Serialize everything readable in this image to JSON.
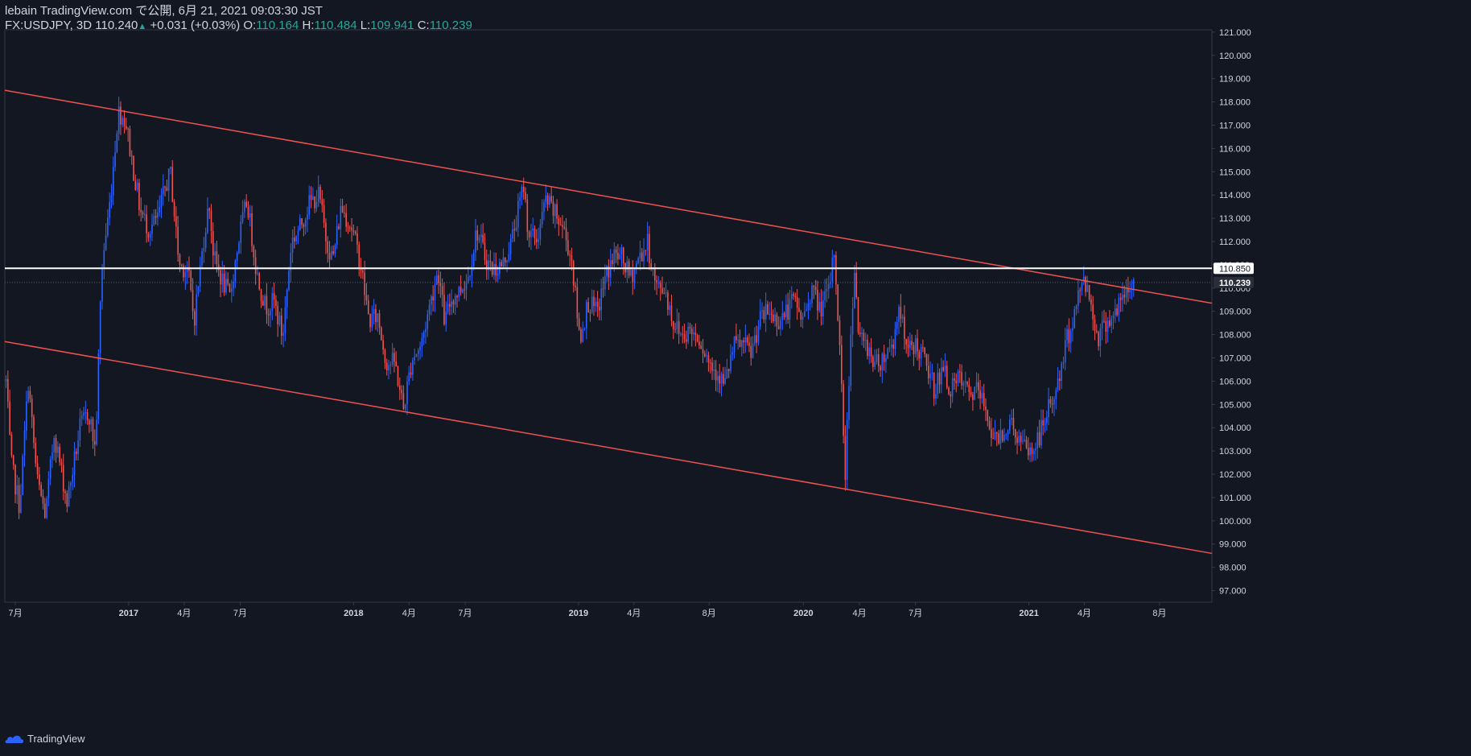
{
  "header": {
    "publish_line": "lebain TradingView.com で公開, 6月 21, 2021 09:03:30 JST",
    "symbol": "FX:USDJPY, 3D",
    "last": "110.240",
    "change": "+0.031 (+0.03%)",
    "o_label": "O:",
    "o_value": "110.164",
    "h_label": "H:",
    "h_value": "110.484",
    "l_label": "L:",
    "l_value": "109.941",
    "c_label": "C:",
    "c_value": "110.239"
  },
  "footer": {
    "brand": "TradingView"
  },
  "colors": {
    "background": "#131722",
    "up": "#2962ff",
    "down": "#ef5350",
    "trendline": "#f0524f",
    "level": "#ffffff",
    "axis_text": "#d1d4dc",
    "grid": "#363a45"
  },
  "chart_data": {
    "type": "candlestick",
    "symbol": "FX:USDJPY",
    "interval": "3D",
    "ylim": [
      96.5,
      121.1
    ],
    "y_ticks": [
      "97.000",
      "98.000",
      "99.000",
      "100.000",
      "101.000",
      "102.000",
      "103.000",
      "104.000",
      "105.000",
      "106.000",
      "107.000",
      "108.000",
      "109.000",
      "110.000",
      "111.000",
      "112.000",
      "113.000",
      "114.000",
      "115.000",
      "116.000",
      "117.000",
      "118.000",
      "119.000",
      "120.000",
      "121.000"
    ],
    "x_ticks": [
      "7月",
      "2017",
      "4月",
      "7月",
      "2018",
      "4月",
      "7月",
      "2019",
      "4月",
      "8月",
      "2020",
      "4月",
      "7月",
      "2021",
      "4月",
      "8月"
    ],
    "x_tick_dates": [
      "2016-07-01",
      "2017-01-01",
      "2017-04-01",
      "2017-07-01",
      "2018-01-01",
      "2018-04-01",
      "2018-07-01",
      "2019-01-01",
      "2019-04-01",
      "2019-08-01",
      "2020-01-01",
      "2020-04-01",
      "2020-07-01",
      "2021-01-01",
      "2021-04-01",
      "2021-08-01"
    ],
    "x_range_dates": [
      "2016-06-14",
      "2021-10-25"
    ],
    "price_labels": [
      {
        "text": "110.850",
        "value": 110.85,
        "style": "white"
      },
      {
        "text": "110.239",
        "value": 110.239,
        "style": "dark"
      }
    ],
    "horizontal_line": {
      "value": 110.85
    },
    "trendlines": [
      {
        "name": "upper",
        "points": [
          {
            "date": "2016-06-14",
            "price": 118.5
          },
          {
            "date": "2021-10-25",
            "price": 109.35
          }
        ]
      },
      {
        "name": "lower",
        "points": [
          {
            "date": "2016-06-14",
            "price": 107.7
          },
          {
            "date": "2021-10-25",
            "price": 98.6
          }
        ]
      }
    ],
    "close_path": [
      [
        "2016-06-16",
        106.0
      ],
      [
        "2016-06-24",
        102.5
      ],
      [
        "2016-07-08",
        100.6
      ],
      [
        "2016-07-22",
        106.0
      ],
      [
        "2016-08-05",
        101.8
      ],
      [
        "2016-08-19",
        100.2
      ],
      [
        "2016-09-02",
        103.8
      ],
      [
        "2016-09-23",
        100.8
      ],
      [
        "2016-10-14",
        104.0
      ],
      [
        "2016-10-28",
        104.7
      ],
      [
        "2016-11-08",
        103.0
      ],
      [
        "2016-11-18",
        110.8
      ],
      [
        "2016-12-02",
        113.8
      ],
      [
        "2016-12-15",
        117.6
      ],
      [
        "2016-12-27",
        117.2
      ],
      [
        "2017-01-06",
        115.5
      ],
      [
        "2017-01-20",
        113.3
      ],
      [
        "2017-02-03",
        112.5
      ],
      [
        "2017-02-17",
        113.0
      ],
      [
        "2017-03-03",
        114.5
      ],
      [
        "2017-03-10",
        114.9
      ],
      [
        "2017-03-24",
        111.0
      ],
      [
        "2017-04-07",
        110.8
      ],
      [
        "2017-04-17",
        108.6
      ],
      [
        "2017-05-05",
        112.6
      ],
      [
        "2017-05-12",
        113.6
      ],
      [
        "2017-05-19",
        111.3
      ],
      [
        "2017-06-02",
        110.3
      ],
      [
        "2017-06-14",
        109.6
      ],
      [
        "2017-06-30",
        112.3
      ],
      [
        "2017-07-12",
        113.8
      ],
      [
        "2017-07-28",
        110.6
      ],
      [
        "2017-08-11",
        109.2
      ],
      [
        "2017-08-25",
        109.4
      ],
      [
        "2017-09-08",
        107.9
      ],
      [
        "2017-09-22",
        112.0
      ],
      [
        "2017-10-06",
        112.6
      ],
      [
        "2017-10-20",
        113.6
      ],
      [
        "2017-11-06",
        114.0
      ],
      [
        "2017-11-17",
        112.2
      ],
      [
        "2017-11-28",
        111.2
      ],
      [
        "2017-12-12",
        113.5
      ],
      [
        "2017-12-29",
        112.6
      ],
      [
        "2018-01-12",
        111.1
      ],
      [
        "2018-01-26",
        108.6
      ],
      [
        "2018-02-09",
        108.8
      ],
      [
        "2018-02-23",
        106.8
      ],
      [
        "2018-03-09",
        106.8
      ],
      [
        "2018-03-23",
        104.8
      ],
      [
        "2018-04-06",
        107.0
      ],
      [
        "2018-04-20",
        107.5
      ],
      [
        "2018-05-04",
        109.2
      ],
      [
        "2018-05-18",
        110.8
      ],
      [
        "2018-05-29",
        108.5
      ],
      [
        "2018-06-08",
        109.5
      ],
      [
        "2018-06-22",
        109.9
      ],
      [
        "2018-07-06",
        110.5
      ],
      [
        "2018-07-20",
        112.5
      ],
      [
        "2018-08-03",
        111.3
      ],
      [
        "2018-08-14",
        110.8
      ],
      [
        "2018-08-31",
        111.0
      ],
      [
        "2018-09-14",
        112.0
      ],
      [
        "2018-09-28",
        113.7
      ],
      [
        "2018-10-04",
        114.4
      ],
      [
        "2018-10-12",
        112.3
      ],
      [
        "2018-10-26",
        112.1
      ],
      [
        "2018-11-09",
        113.8
      ],
      [
        "2018-11-23",
        113.2
      ],
      [
        "2018-12-07",
        112.6
      ],
      [
        "2018-12-21",
        111.2
      ],
      [
        "2019-01-03",
        107.8
      ],
      [
        "2019-01-17",
        109.4
      ],
      [
        "2019-01-31",
        108.9
      ],
      [
        "2019-02-14",
        110.5
      ],
      [
        "2019-02-28",
        111.4
      ],
      [
        "2019-03-12",
        111.3
      ],
      [
        "2019-03-26",
        110.4
      ],
      [
        "2019-04-09",
        111.3
      ],
      [
        "2019-04-23",
        111.9
      ],
      [
        "2019-05-07",
        110.0
      ],
      [
        "2019-05-21",
        110.0
      ],
      [
        "2019-06-04",
        108.5
      ],
      [
        "2019-06-18",
        108.0
      ],
      [
        "2019-07-02",
        108.2
      ],
      [
        "2019-07-16",
        107.9
      ],
      [
        "2019-08-01",
        106.8
      ],
      [
        "2019-08-15",
        106.4
      ],
      [
        "2019-08-26",
        105.8
      ],
      [
        "2019-09-10",
        107.5
      ],
      [
        "2019-09-24",
        107.6
      ],
      [
        "2019-10-08",
        107.2
      ],
      [
        "2019-10-22",
        108.6
      ],
      [
        "2019-11-05",
        109.0
      ],
      [
        "2019-11-19",
        108.6
      ],
      [
        "2019-12-03",
        108.9
      ],
      [
        "2019-12-17",
        109.5
      ],
      [
        "2019-12-31",
        108.6
      ],
      [
        "2020-01-14",
        110.0
      ],
      [
        "2020-01-28",
        109.1
      ],
      [
        "2020-02-11",
        109.8
      ],
      [
        "2020-02-20",
        111.6
      ],
      [
        "2020-02-28",
        108.0
      ],
      [
        "2020-03-09",
        102.0
      ],
      [
        "2020-03-17",
        107.5
      ],
      [
        "2020-03-24",
        111.0
      ],
      [
        "2020-03-31",
        107.8
      ],
      [
        "2020-04-14",
        107.5
      ],
      [
        "2020-04-28",
        106.7
      ],
      [
        "2020-05-12",
        107.1
      ],
      [
        "2020-05-26",
        107.7
      ],
      [
        "2020-06-05",
        109.4
      ],
      [
        "2020-06-16",
        107.2
      ],
      [
        "2020-06-30",
        107.6
      ],
      [
        "2020-07-14",
        107.0
      ],
      [
        "2020-07-31",
        105.7
      ],
      [
        "2020-08-14",
        106.5
      ],
      [
        "2020-08-28",
        105.6
      ],
      [
        "2020-09-11",
        106.1
      ],
      [
        "2020-09-25",
        105.4
      ],
      [
        "2020-10-09",
        105.6
      ],
      [
        "2020-10-23",
        104.8
      ],
      [
        "2020-11-06",
        103.4
      ],
      [
        "2020-11-20",
        103.9
      ],
      [
        "2020-12-04",
        104.2
      ],
      [
        "2020-12-18",
        103.3
      ],
      [
        "2021-01-06",
        102.9
      ],
      [
        "2021-01-20",
        103.8
      ],
      [
        "2021-02-03",
        104.9
      ],
      [
        "2021-02-17",
        105.8
      ],
      [
        "2021-03-03",
        107.7
      ],
      [
        "2021-03-17",
        109.0
      ],
      [
        "2021-03-31",
        110.6
      ],
      [
        "2021-04-09",
        109.6
      ],
      [
        "2021-04-23",
        107.9
      ],
      [
        "2021-05-07",
        108.6
      ],
      [
        "2021-05-21",
        108.9
      ],
      [
        "2021-06-04",
        109.6
      ],
      [
        "2021-06-21",
        110.24
      ]
    ]
  }
}
